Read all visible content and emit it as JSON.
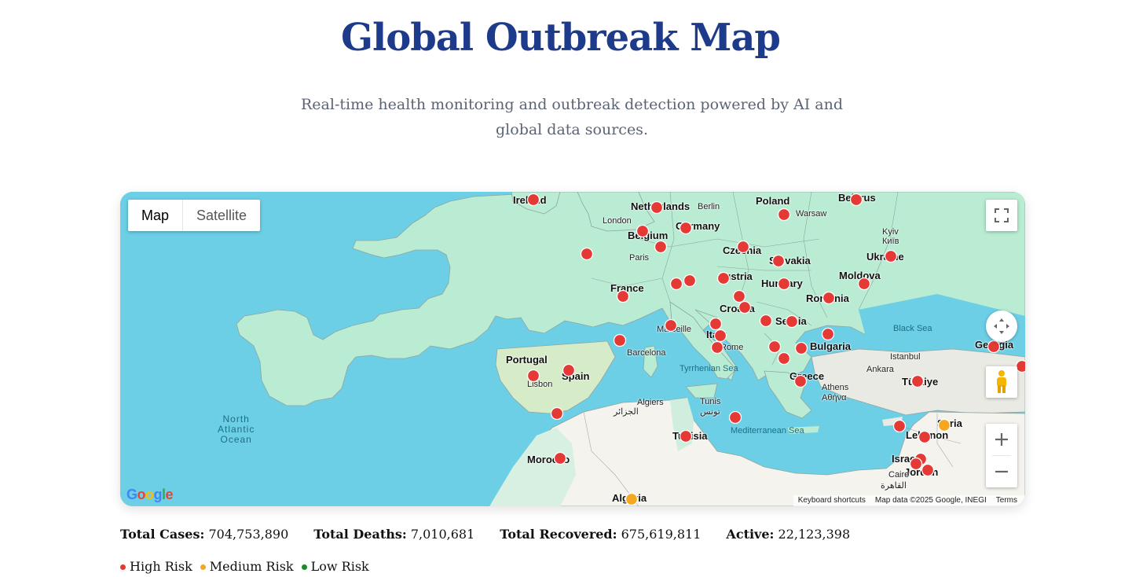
{
  "header": {
    "title": "Global Outbreak Map",
    "subtitle": "Real-time health monitoring and outbreak detection powered by AI and global data sources."
  },
  "map": {
    "type_controls": [
      "Map",
      "Satellite"
    ],
    "active_type": "Map",
    "labels": {
      "countries": [
        "Ireland",
        "Netherlands",
        "Poland",
        "Belarus",
        "Belgium",
        "Germany",
        "Czechia",
        "Slovakia",
        "Ukraine",
        "France",
        "Austria",
        "Hungary",
        "Moldova",
        "Croatia",
        "Romania",
        "Serbia",
        "Italy",
        "Bulgaria",
        "Georgia",
        "Portugal",
        "Spain",
        "Greece",
        "Türkiye",
        "Tunisia",
        "Syria",
        "Lebanon",
        "Israel",
        "Jordan",
        "Morocco",
        "Algeria"
      ],
      "cities": [
        "London",
        "Berlin",
        "Warsaw",
        "Kyiv",
        "Київ",
        "Paris",
        "Marseille",
        "Rome",
        "Barcelona",
        "Lisbon",
        "Istanbul",
        "Ankara",
        "Athens",
        "Αθήνα",
        "Algiers",
        "الجزائر",
        "Tunis",
        "تونس",
        "Cairo",
        "القاهرة"
      ],
      "seas": [
        "Black Sea",
        "Tyrrhenian Sea",
        "Mediterranean Sea"
      ],
      "ocean": [
        "North",
        "Atlantic",
        "Ocean"
      ]
    },
    "attribution": {
      "logo": "Google",
      "shortcuts": "Keyboard shortcuts",
      "data": "Map data ©2025 Google, INEGI",
      "terms": "Terms"
    },
    "marker_colors": {
      "high": "#e53935",
      "medium": "#f5a623",
      "low": "#1b8a2a"
    },
    "icons": [
      "fullscreen-icon",
      "camera-control-icon",
      "pegman-icon",
      "zoom-in-icon",
      "zoom-out-icon"
    ]
  },
  "stats": {
    "cases_label": "Total Cases:",
    "cases_value": "704,753,890",
    "deaths_label": "Total Deaths:",
    "deaths_value": "7,010,681",
    "recovered_label": "Total Recovered:",
    "recovered_value": "675,619,811",
    "active_label": "Active:",
    "active_value": "22,123,398"
  },
  "legend": {
    "high": "High Risk",
    "medium": "Medium Risk",
    "low": "Low Risk"
  }
}
